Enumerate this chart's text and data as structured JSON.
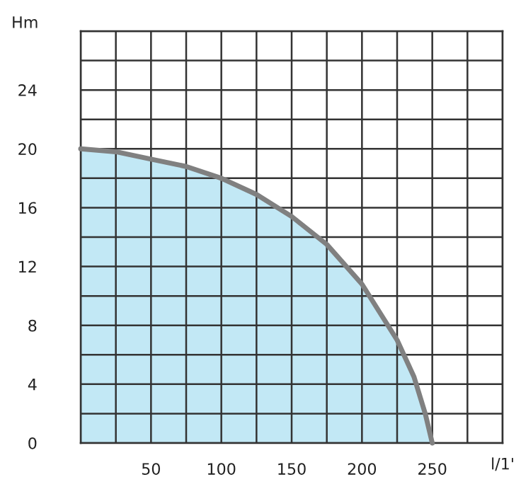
{
  "chart_data": {
    "type": "area",
    "xlabel": "l/1'",
    "ylabel": "Hm",
    "x": [
      0,
      25,
      50,
      75,
      100,
      125,
      150,
      175,
      200,
      225,
      237,
      245,
      250
    ],
    "series": [
      {
        "color": "#c2e8f5",
        "values": [
          20,
          19.8,
          19.3,
          18.8,
          18,
          16.9,
          15.4,
          13.5,
          10.8,
          7,
          4.5,
          2,
          0
        ]
      }
    ],
    "xlim": [
      0,
      300
    ],
    "ylim": [
      0,
      28
    ],
    "xticks": [
      {
        "value": 0,
        "label": null
      },
      {
        "value": 25,
        "label": null
      },
      50,
      {
        "value": 75,
        "label": null
      },
      100,
      {
        "value": 125,
        "label": null
      },
      150,
      {
        "value": 175,
        "label": null
      },
      200,
      {
        "value": 225,
        "label": null
      },
      250,
      {
        "value": 275,
        "label": null
      },
      {
        "value": 300,
        "label": null
      }
    ],
    "yticks": [
      0,
      {
        "value": 2,
        "label": null
      },
      4,
      {
        "value": 6,
        "label": null
      },
      8,
      {
        "value": 10,
        "label": null
      },
      12,
      {
        "value": 14,
        "label": null
      },
      16,
      {
        "value": 18,
        "label": null
      },
      20,
      {
        "value": 22,
        "label": null
      },
      24,
      {
        "value": 26,
        "label": null
      },
      {
        "value": 28,
        "label": null
      }
    ],
    "grid": true
  }
}
